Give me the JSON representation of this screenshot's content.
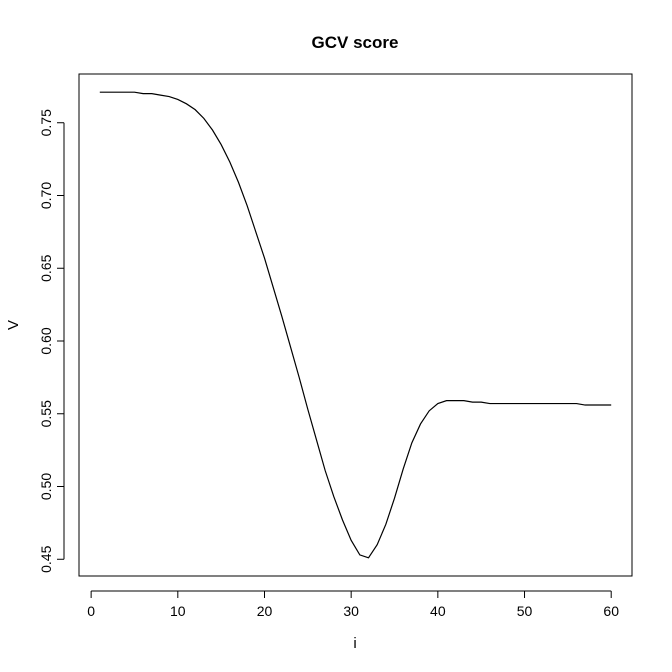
{
  "chart_data": {
    "type": "line",
    "title": "GCV score",
    "xlabel": "i",
    "ylabel": "V",
    "xlim": [
      -1.4,
      62.4
    ],
    "ylim": [
      0.4385,
      0.7835
    ],
    "xticks": [
      0,
      10,
      20,
      30,
      40,
      50,
      60
    ],
    "xtick_labels": [
      "0",
      "10",
      "20",
      "30",
      "40",
      "50",
      "60"
    ],
    "yticks": [
      0.45,
      0.5,
      0.55,
      0.6,
      0.65,
      0.7,
      0.75
    ],
    "ytick_labels": [
      "0.45",
      "0.50",
      "0.55",
      "0.60",
      "0.65",
      "0.70",
      "0.75"
    ],
    "grid": false,
    "legend": "none",
    "line_color": "#000000",
    "series": [
      {
        "x": [
          1,
          2,
          3,
          4,
          5,
          6,
          7,
          8,
          9,
          10,
          11,
          12,
          13,
          14,
          15,
          16,
          17,
          18,
          19,
          20,
          21,
          22,
          23,
          24,
          25,
          26,
          27,
          28,
          29,
          30,
          31,
          32,
          33,
          34,
          35,
          36,
          37,
          38,
          39,
          40,
          41,
          42,
          43,
          44,
          45,
          46,
          47,
          48,
          49,
          50,
          51,
          52,
          53,
          54,
          55,
          56,
          57,
          58,
          59,
          60
        ],
        "y": [
          0.771,
          0.771,
          0.771,
          0.771,
          0.771,
          0.77,
          0.77,
          0.769,
          0.768,
          0.766,
          0.763,
          0.759,
          0.753,
          0.745,
          0.735,
          0.723,
          0.709,
          0.693,
          0.675,
          0.657,
          0.637,
          0.617,
          0.596,
          0.575,
          0.553,
          0.532,
          0.511,
          0.493,
          0.477,
          0.463,
          0.453,
          0.451,
          0.46,
          0.474,
          0.492,
          0.512,
          0.53,
          0.543,
          0.552,
          0.557,
          0.559,
          0.559,
          0.559,
          0.558,
          0.558,
          0.557,
          0.557,
          0.557,
          0.557,
          0.557,
          0.557,
          0.557,
          0.557,
          0.557,
          0.557,
          0.557,
          0.556,
          0.556,
          0.556,
          0.556
        ]
      }
    ]
  }
}
